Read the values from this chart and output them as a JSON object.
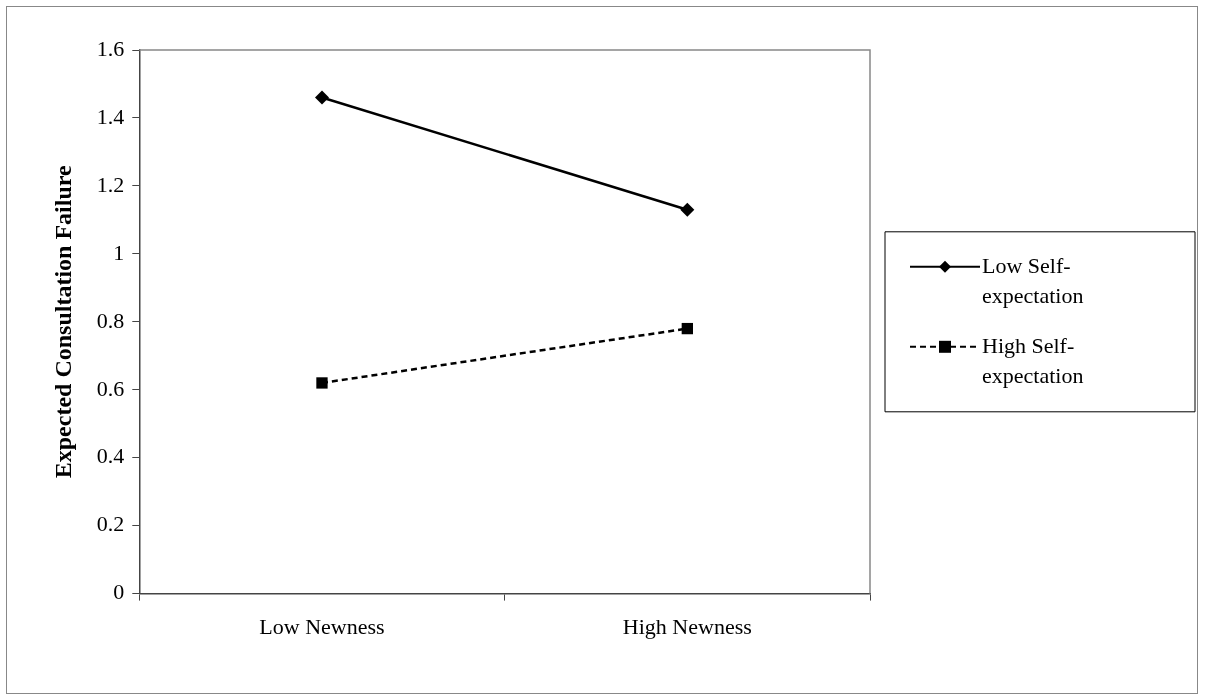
{
  "chart_data": {
    "type": "line",
    "ylabel": "Expected Consultation Failure",
    "categories": [
      "Low Newness",
      "High Newness"
    ],
    "ylim": [
      0,
      1.6
    ],
    "yticks": [
      0,
      0.2,
      0.4,
      0.6,
      0.8,
      1,
      1.2,
      1.4,
      1.6
    ],
    "grid": false,
    "legend": "right",
    "series": [
      {
        "name": "Low Self-expectation",
        "color": "#000000",
        "values": [
          1.46,
          1.13
        ],
        "marker": "diamond",
        "line_style": "solid"
      },
      {
        "name": "High Self-expectation",
        "color": "#000000",
        "values": [
          0.62,
          0.78
        ],
        "marker": "square",
        "line_style": "dashed"
      }
    ]
  }
}
